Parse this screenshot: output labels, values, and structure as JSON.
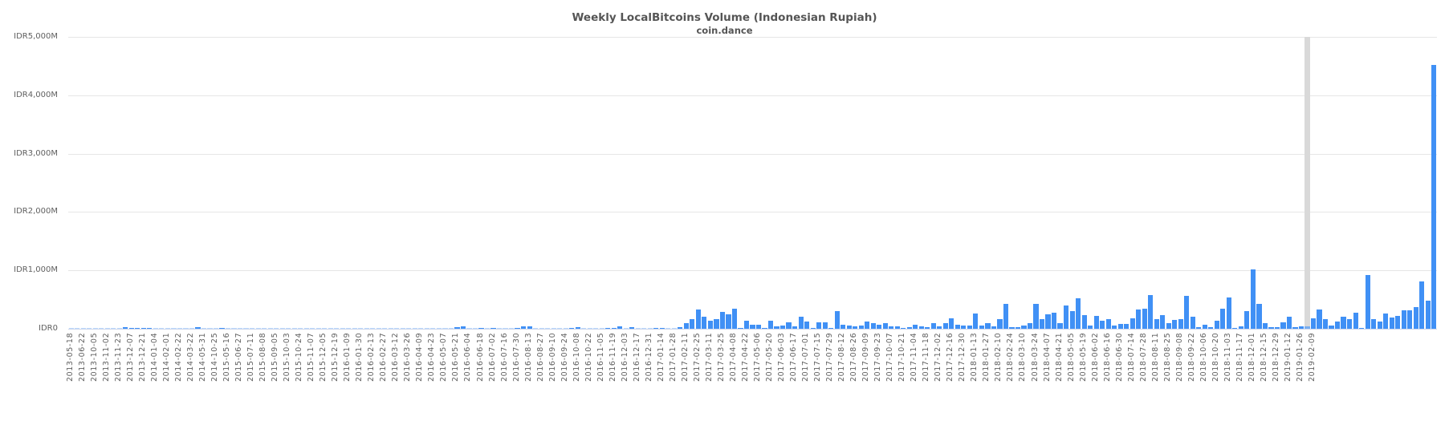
{
  "chart_data": {
    "type": "bar",
    "title": "Weekly LocalBitcoins Volume (Indonesian Rupiah)",
    "subtitle": "coin.dance",
    "xlabel": "",
    "ylabel": "",
    "ylim": [
      0,
      5000
    ],
    "y_unit": "IDR millions",
    "y_ticks": [
      "IDR0",
      "IDR1,000M",
      "IDR2,000M",
      "IDR3,000M",
      "IDR4,000M",
      "IDR5,000M"
    ],
    "grid": true,
    "legend": null,
    "color": "#4090f5",
    "hover_color": "#79aef0",
    "hover_band_color": "#d9d9d9",
    "hovered_index": 205,
    "tick_labels": [
      "2013-05-18",
      "2013-06-22",
      "2013-10-05",
      "2013-11-02",
      "2013-11-23",
      "2013-12-07",
      "2013-12-21",
      "2014-01-04",
      "2014-02-01",
      "2014-02-22",
      "2014-03-22",
      "2014-05-31",
      "2014-10-25",
      "2015-05-16",
      "2015-06-27",
      "2015-07-11",
      "2015-08-08",
      "2015-09-05",
      "2015-10-03",
      "2015-10-24",
      "2015-11-07",
      "2015-12-05",
      "2015-12-19",
      "2016-01-09",
      "2016-01-30",
      "2016-02-13",
      "2016-02-27",
      "2016-03-12",
      "2016-03-26",
      "2016-04-09",
      "2016-04-23",
      "2016-05-07",
      "2016-05-21",
      "2016-06-04",
      "2016-06-18",
      "2016-07-02",
      "2016-07-16",
      "2016-07-30",
      "2016-08-13",
      "2016-08-27",
      "2016-09-10",
      "2016-09-24",
      "2016-10-08",
      "2016-10-22",
      "2016-11-05",
      "2016-11-19",
      "2016-12-03",
      "2016-12-17",
      "2016-12-31",
      "2017-01-14",
      "2017-01-28",
      "2017-02-11",
      "2017-02-25",
      "2017-03-11",
      "2017-03-25",
      "2017-04-08",
      "2017-04-22",
      "2017-05-06",
      "2017-05-20",
      "2017-06-03",
      "2017-06-17",
      "2017-07-01",
      "2017-07-15",
      "2017-07-29",
      "2017-08-12",
      "2017-08-26",
      "2017-09-09",
      "2017-09-23",
      "2017-10-07",
      "2017-10-21",
      "2017-11-04",
      "2017-11-18",
      "2017-12-02",
      "2017-12-16",
      "2017-12-30",
      "2018-01-13",
      "2018-01-27",
      "2018-02-10",
      "2018-02-24",
      "2018-03-10",
      "2018-03-24",
      "2018-04-07",
      "2018-04-21",
      "2018-05-05",
      "2018-05-19",
      "2018-06-02",
      "2018-06-16",
      "2018-06-30",
      "2018-07-14",
      "2018-07-28",
      "2018-08-11",
      "2018-08-25",
      "2018-09-08",
      "2018-09-22",
      "2018-10-06",
      "2018-10-20",
      "2018-11-03",
      "2018-11-17",
      "2018-12-01",
      "2018-12-15",
      "2018-12-29",
      "2019-01-12",
      "2019-01-26",
      "2019-02-09"
    ],
    "tick_every_n_bars": 2,
    "values": [
      2,
      1,
      3,
      2,
      4,
      5,
      6,
      8,
      10,
      25,
      20,
      20,
      18,
      20,
      2,
      2,
      5,
      4,
      4,
      6,
      8,
      22,
      6,
      5,
      4,
      18,
      3,
      3,
      6,
      5,
      5,
      4,
      2,
      3,
      3,
      5,
      5,
      10,
      4,
      4,
      3,
      5,
      8,
      6,
      4,
      5,
      3,
      4,
      3,
      5,
      4,
      3,
      4,
      2,
      5,
      4,
      6,
      12,
      8,
      4,
      3,
      4,
      5,
      4,
      30,
      40,
      10,
      8,
      15,
      12,
      20,
      12,
      10,
      8,
      20,
      45,
      40,
      10,
      8,
      6,
      2,
      2,
      6,
      20,
      30,
      12,
      6,
      10,
      12,
      15,
      20,
      35,
      12,
      25,
      10,
      8,
      10,
      20,
      15,
      8,
      10,
      30,
      100,
      170,
      330,
      200,
      140,
      170,
      290,
      250,
      350,
      20,
      140,
      75,
      75,
      20,
      140,
      40,
      60,
      110,
      40,
      210,
      130,
      20,
      110,
      110,
      20,
      300,
      70,
      55,
      35,
      60,
      120,
      95,
      70,
      90,
      35,
      40,
      20,
      25,
      75,
      45,
      30,
      100,
      40,
      90,
      185,
      75,
      60,
      50,
      260,
      60,
      100,
      40,
      170,
      420,
      30,
      25,
      60,
      100,
      430,
      160,
      250,
      270,
      100,
      400,
      300,
      520,
      230,
      60,
      220,
      140,
      160,
      55,
      80,
      80,
      185,
      330,
      340,
      580,
      170,
      230,
      90,
      150,
      170,
      560,
      200,
      30,
      75,
      25,
      140,
      350,
      540,
      20,
      40,
      300,
      1020,
      430,
      90,
      30,
      30,
      110,
      210,
      30,
      40,
      35,
      180,
      330,
      160,
      55,
      130,
      200,
      160,
      270,
      20,
      920,
      160,
      130,
      260,
      190,
      220,
      320,
      320,
      370,
      810,
      480,
      4520
    ]
  }
}
